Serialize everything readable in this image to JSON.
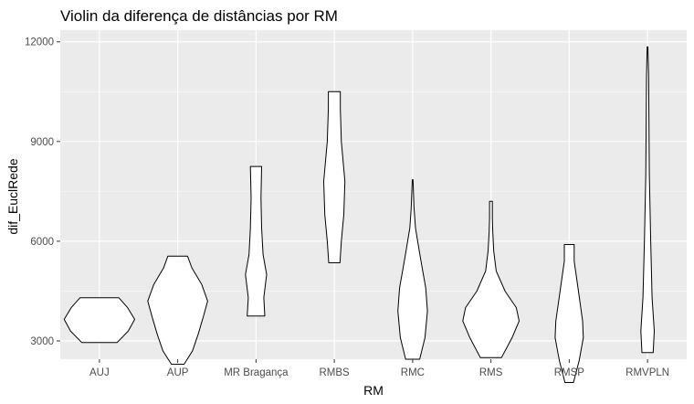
{
  "chart_data": {
    "type": "violin",
    "title": "Violin da diferença de distâncias por RM",
    "xlabel": "RM",
    "ylabel": "dif_EuclRede",
    "ylim": [
      2450,
      12350
    ],
    "yticks": [
      3000,
      6000,
      9000,
      12000
    ],
    "ytick_labels": [
      "3000",
      "6000",
      "9000",
      "12000"
    ],
    "categories": [
      "AUJ",
      "AUP",
      "MR Bragança",
      "RMBS",
      "RMC",
      "RMS",
      "RMSP",
      "RMVPLN"
    ],
    "grid": true,
    "panel_background": "#ebebeb",
    "grid_major_color": "#ffffff",
    "violin_fill": "#ffffff",
    "violin_outline": "#000000",
    "violins": [
      {
        "category": "AUJ",
        "min": 2950,
        "max": 4300,
        "profile": [
          [
            2950,
            0.5
          ],
          [
            3300,
            0.82
          ],
          [
            3650,
            1.0
          ],
          [
            4000,
            0.8
          ],
          [
            4300,
            0.55
          ]
        ]
      },
      {
        "category": "AUP",
        "min": 2300,
        "max": 5550,
        "profile": [
          [
            2300,
            0.18
          ],
          [
            2700,
            0.42
          ],
          [
            3200,
            0.58
          ],
          [
            3700,
            0.72
          ],
          [
            4200,
            0.85
          ],
          [
            4700,
            0.68
          ],
          [
            5200,
            0.4
          ],
          [
            5550,
            0.28
          ]
        ]
      },
      {
        "category": "MR Bragança",
        "min": 3750,
        "max": 8250,
        "profile": [
          [
            3750,
            0.25
          ],
          [
            4300,
            0.22
          ],
          [
            5000,
            0.3
          ],
          [
            5600,
            0.2
          ],
          [
            6400,
            0.16
          ],
          [
            7300,
            0.14
          ],
          [
            8250,
            0.16
          ]
        ]
      },
      {
        "category": "RMBS",
        "min": 5350,
        "max": 10500,
        "profile": [
          [
            5350,
            0.16
          ],
          [
            6000,
            0.2
          ],
          [
            6800,
            0.27
          ],
          [
            7800,
            0.3
          ],
          [
            9000,
            0.2
          ],
          [
            10000,
            0.17
          ],
          [
            10500,
            0.17
          ]
        ]
      },
      {
        "category": "RMC",
        "min": 2450,
        "max": 7850,
        "profile": [
          [
            2450,
            0.2
          ],
          [
            3100,
            0.35
          ],
          [
            3900,
            0.42
          ],
          [
            4600,
            0.37
          ],
          [
            5500,
            0.22
          ],
          [
            6400,
            0.08
          ],
          [
            7000,
            0.04
          ],
          [
            7850,
            0.01
          ]
        ]
      },
      {
        "category": "RMS",
        "min": 2500,
        "max": 7200,
        "profile": [
          [
            2500,
            0.3
          ],
          [
            3100,
            0.6
          ],
          [
            3600,
            0.8
          ],
          [
            4000,
            0.72
          ],
          [
            4500,
            0.4
          ],
          [
            5100,
            0.15
          ],
          [
            5700,
            0.08
          ],
          [
            6300,
            0.05
          ],
          [
            6700,
            0.04
          ],
          [
            7200,
            0.04
          ]
        ]
      },
      {
        "category": "RMSP",
        "min": 1750,
        "max": 5900,
        "profile": [
          [
            1750,
            0.12
          ],
          [
            2400,
            0.28
          ],
          [
            3100,
            0.4
          ],
          [
            3600,
            0.38
          ],
          [
            4200,
            0.3
          ],
          [
            4800,
            0.22
          ],
          [
            5400,
            0.14
          ],
          [
            5900,
            0.14
          ]
        ]
      },
      {
        "category": "RMVPLN",
        "min": 2650,
        "max": 11850,
        "profile": [
          [
            2650,
            0.16
          ],
          [
            3300,
            0.19
          ],
          [
            4300,
            0.13
          ],
          [
            6000,
            0.09
          ],
          [
            8000,
            0.05
          ],
          [
            9500,
            0.04
          ],
          [
            11000,
            0.03
          ],
          [
            11850,
            0.01
          ]
        ]
      }
    ]
  }
}
